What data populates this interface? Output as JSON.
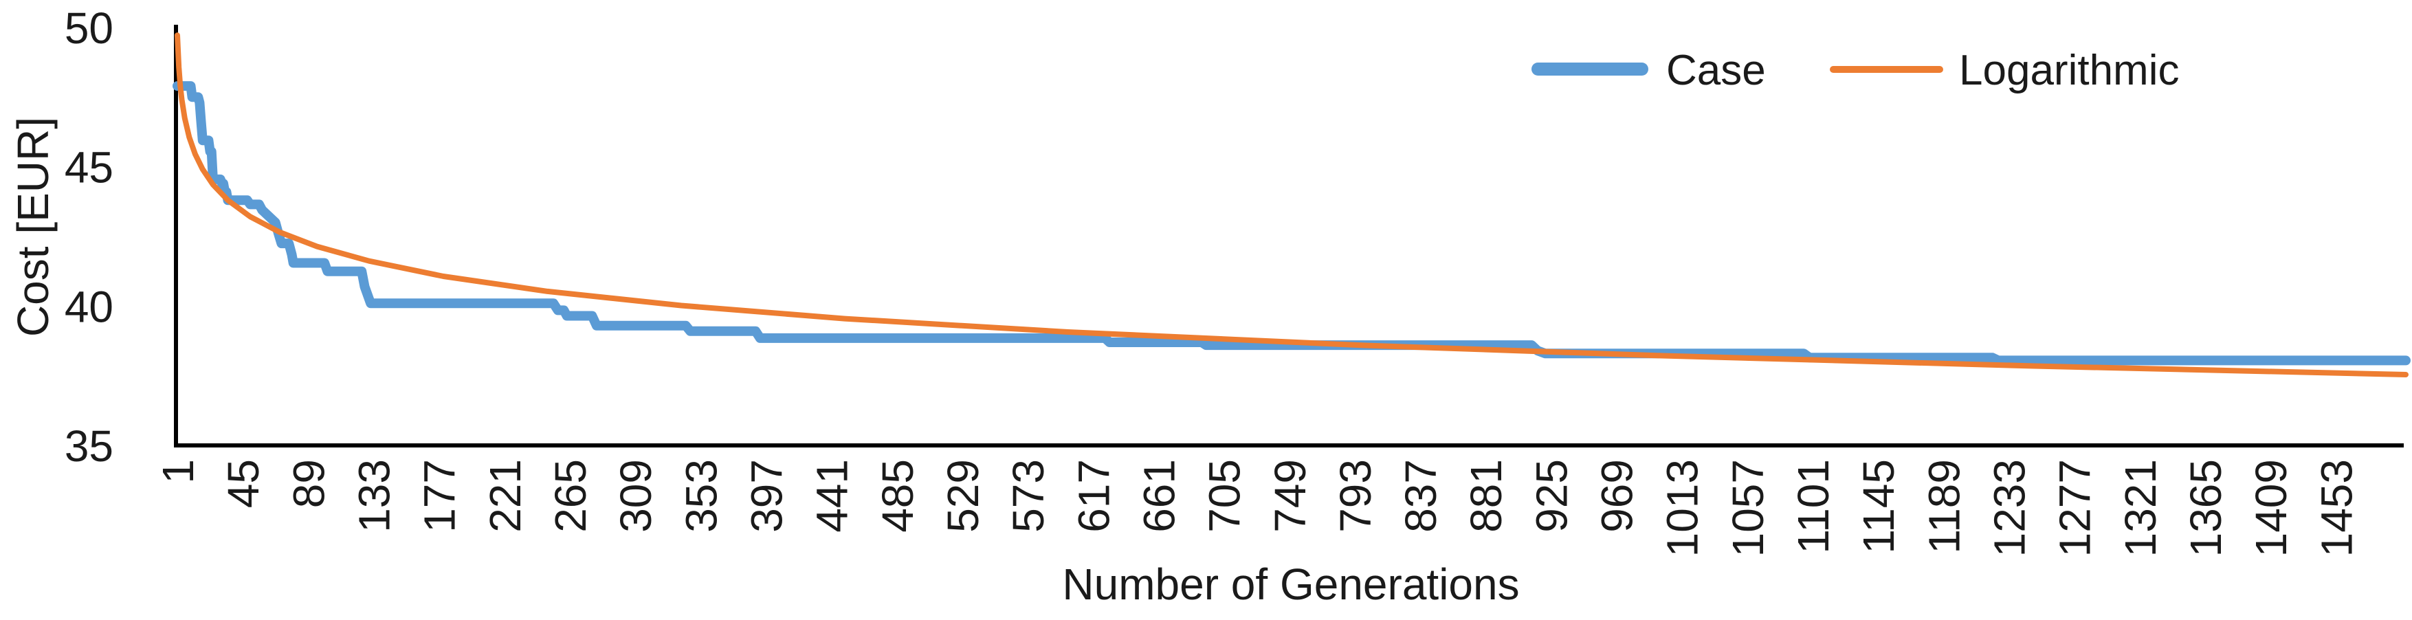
{
  "chart_data": {
    "type": "line",
    "title": "",
    "xlabel": "Number of Generations",
    "ylabel": "Cost [EUR]",
    "x_axis": {
      "tick_labels": [
        "1",
        "45",
        "89",
        "133",
        "177",
        "221",
        "265",
        "309",
        "353",
        "397",
        "441",
        "485",
        "529",
        "573",
        "617",
        "661",
        "705",
        "749",
        "793",
        "837",
        "881",
        "925",
        "969",
        "1013",
        "1057",
        "1101",
        "1145",
        "1189",
        "1233",
        "1277",
        "1321",
        "1365",
        "1409",
        "1453"
      ],
      "tick_interval": 44,
      "range": [
        1,
        1500
      ],
      "label_rotation_deg": -90
    },
    "y_axis": {
      "tick_labels": [
        "35",
        "40",
        "45",
        "50"
      ],
      "tick_interval": 5,
      "range": [
        35,
        50
      ]
    },
    "grid": false,
    "legend": {
      "position": "top-right",
      "entries": [
        {
          "label": "Case",
          "color": "#5B9BD5",
          "line_weight": "thick"
        },
        {
          "label": "Logarithmic",
          "color": "#ED7D31",
          "line_weight": "thin"
        }
      ]
    },
    "series": [
      {
        "name": "Case",
        "color": "#5B9BD5",
        "style": "stepped-best-so-far",
        "stroke_width": 14,
        "points": [
          [
            1,
            47.9
          ],
          [
            10,
            47.9
          ],
          [
            11,
            47.5
          ],
          [
            15,
            47.5
          ],
          [
            16,
            47.3
          ],
          [
            17,
            46.6
          ],
          [
            18,
            45.95
          ],
          [
            22,
            45.95
          ],
          [
            23,
            45.55
          ],
          [
            24,
            45.55
          ],
          [
            25,
            44.55
          ],
          [
            30,
            44.55
          ],
          [
            31,
            44.4
          ],
          [
            32,
            44.4
          ],
          [
            33,
            44.1
          ],
          [
            34,
            44.1
          ],
          [
            35,
            43.8
          ],
          [
            48,
            43.8
          ],
          [
            50,
            43.65
          ],
          [
            56,
            43.65
          ],
          [
            58,
            43.45
          ],
          [
            61,
            43.3
          ],
          [
            64,
            43.15
          ],
          [
            67,
            43.0
          ],
          [
            69,
            42.6
          ],
          [
            71,
            42.25
          ],
          [
            76,
            42.25
          ],
          [
            78,
            41.85
          ],
          [
            79,
            41.55
          ],
          [
            100,
            41.55
          ],
          [
            102,
            41.25
          ],
          [
            125,
            41.25
          ],
          [
            127,
            40.7
          ],
          [
            131,
            40.1
          ],
          [
            254,
            40.1
          ],
          [
            257,
            39.85
          ],
          [
            261,
            39.85
          ],
          [
            263,
            39.65
          ],
          [
            280,
            39.65
          ],
          [
            283,
            39.3
          ],
          [
            343,
            39.3
          ],
          [
            346,
            39.1
          ],
          [
            390,
            39.1
          ],
          [
            393,
            38.85
          ],
          [
            625,
            38.85
          ],
          [
            628,
            38.7
          ],
          [
            690,
            38.7
          ],
          [
            693,
            38.6
          ],
          [
            912,
            38.6
          ],
          [
            916,
            38.4
          ],
          [
            921,
            38.3
          ],
          [
            1095,
            38.3
          ],
          [
            1099,
            38.15
          ],
          [
            1222,
            38.15
          ],
          [
            1226,
            38.05
          ],
          [
            1500,
            38.05
          ]
        ]
      },
      {
        "name": "Logarithmic",
        "color": "#ED7D31",
        "style": "logarithmic-trendline",
        "stroke_width": 8,
        "points": [
          [
            1,
            49.72
          ],
          [
            2,
            48.57
          ],
          [
            3,
            47.89
          ],
          [
            4,
            47.41
          ],
          [
            6,
            46.74
          ],
          [
            9,
            46.06
          ],
          [
            13,
            45.45
          ],
          [
            18,
            44.91
          ],
          [
            25,
            44.36
          ],
          [
            35,
            43.8
          ],
          [
            50,
            43.21
          ],
          [
            70,
            42.65
          ],
          [
            95,
            42.14
          ],
          [
            130,
            41.62
          ],
          [
            180,
            41.07
          ],
          [
            250,
            40.53
          ],
          [
            340,
            40.02
          ],
          [
            450,
            39.55
          ],
          [
            600,
            39.07
          ],
          [
            800,
            38.59
          ],
          [
            1000,
            38.22
          ],
          [
            1250,
            37.85
          ],
          [
            1500,
            37.54
          ]
        ]
      }
    ],
    "colors": {
      "axis": "#000000",
      "text": "#1a1a1a",
      "background": "#ffffff",
      "case_blue": "#5B9BD5",
      "logarithmic_orange": "#ED7D31"
    }
  }
}
